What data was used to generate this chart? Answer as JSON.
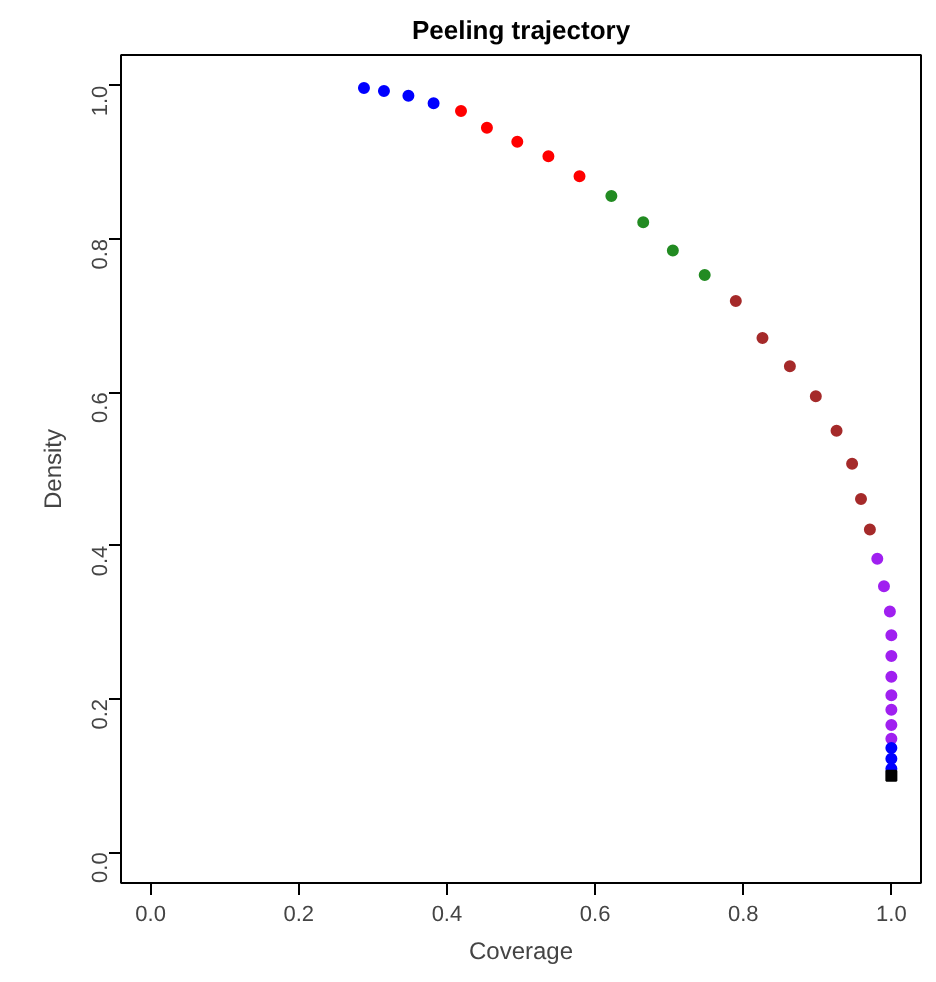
{
  "chart_data": {
    "type": "scatter",
    "title": "Peeling trajectory",
    "xlabel": "Coverage",
    "ylabel": "Density",
    "xlim": [
      -0.04,
      1.04
    ],
    "ylim": [
      -0.04,
      1.04
    ],
    "xticks": [
      {
        "value": 0,
        "label": "0.0"
      },
      {
        "value": 0.2,
        "label": "0.2"
      },
      {
        "value": 0.4,
        "label": "0.4"
      },
      {
        "value": 0.6,
        "label": "0.6"
      },
      {
        "value": 0.8,
        "label": "0.8"
      },
      {
        "value": 1,
        "label": "1.0"
      }
    ],
    "yticks": [
      {
        "value": 0,
        "label": "0.0"
      },
      {
        "value": 0.2,
        "label": "0.2"
      },
      {
        "value": 0.4,
        "label": "0.4"
      },
      {
        "value": 0.6,
        "label": "0.6"
      },
      {
        "value": 0.8,
        "label": "0.8"
      },
      {
        "value": 1,
        "label": "1.0"
      }
    ],
    "grid": false,
    "marker": "circle",
    "series": [
      {
        "color": "#0000ff",
        "x": [
          0.288,
          0.315,
          0.348,
          0.382
        ],
        "values": [
          0.997,
          0.993,
          0.987,
          0.977
        ]
      },
      {
        "color": "#ff0000",
        "x": [
          0.419,
          0.454,
          0.495,
          0.537,
          0.579
        ],
        "values": [
          0.967,
          0.945,
          0.927,
          0.908,
          0.882
        ]
      },
      {
        "color": "#228b22",
        "x": [
          0.622,
          0.665,
          0.705,
          0.748
        ],
        "values": [
          0.856,
          0.822,
          0.785,
          0.753
        ]
      },
      {
        "color": "#a52a2a",
        "x": [
          0.79,
          0.826,
          0.863,
          0.898,
          0.926,
          0.947,
          0.959,
          0.971
        ],
        "values": [
          0.719,
          0.671,
          0.634,
          0.595,
          0.55,
          0.507,
          0.461,
          0.421
        ]
      },
      {
        "color": "#a020f0",
        "x": [
          0.981,
          0.99,
          0.998,
          1.0,
          1.0,
          1.0,
          1.0,
          1.0,
          1.0,
          1.0
        ],
        "values": [
          0.383,
          0.347,
          0.314,
          0.283,
          0.256,
          0.229,
          0.205,
          0.186,
          0.166,
          0.148
        ]
      },
      {
        "color": "#0000ff",
        "x": [
          1.0,
          1.0,
          1.0
        ],
        "values": [
          0.136,
          0.122,
          0.109
        ]
      },
      {
        "color": "#000000",
        "marker": "square",
        "x": [
          1.0
        ],
        "values": [
          0.1
        ]
      }
    ]
  }
}
